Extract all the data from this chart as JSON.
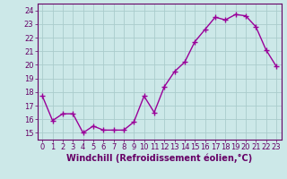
{
  "hours": [
    0,
    1,
    2,
    3,
    4,
    5,
    6,
    7,
    8,
    9,
    10,
    11,
    12,
    13,
    14,
    15,
    16,
    17,
    18,
    19,
    20,
    21,
    22,
    23
  ],
  "values": [
    17.7,
    15.9,
    16.4,
    16.4,
    15.0,
    15.5,
    15.2,
    15.2,
    15.2,
    15.8,
    17.7,
    16.5,
    18.4,
    19.5,
    20.2,
    21.7,
    22.6,
    23.5,
    23.3,
    23.7,
    23.6,
    22.8,
    21.1,
    19.9
  ],
  "line_color": "#990099",
  "marker": "+",
  "bg_color": "#cce8e8",
  "grid_color": "#aacccc",
  "xlabel": "Windchill (Refroidissement éolien,°C)",
  "ylim": [
    14.5,
    24.5
  ],
  "yticks": [
    15,
    16,
    17,
    18,
    19,
    20,
    21,
    22,
    23,
    24
  ],
  "xtick_labels": [
    "0",
    "1",
    "2",
    "3",
    "4",
    "5",
    "6",
    "7",
    "8",
    "9",
    "10",
    "11",
    "12",
    "13",
    "14",
    "15",
    "16",
    "17",
    "18",
    "19",
    "20",
    "21",
    "22",
    "23"
  ],
  "tick_color": "#660066",
  "axis_label_color": "#660066",
  "spine_color": "#660066",
  "linewidth": 1.0,
  "markersize": 4,
  "tick_fontsize": 6.0,
  "xlabel_fontsize": 7.0
}
